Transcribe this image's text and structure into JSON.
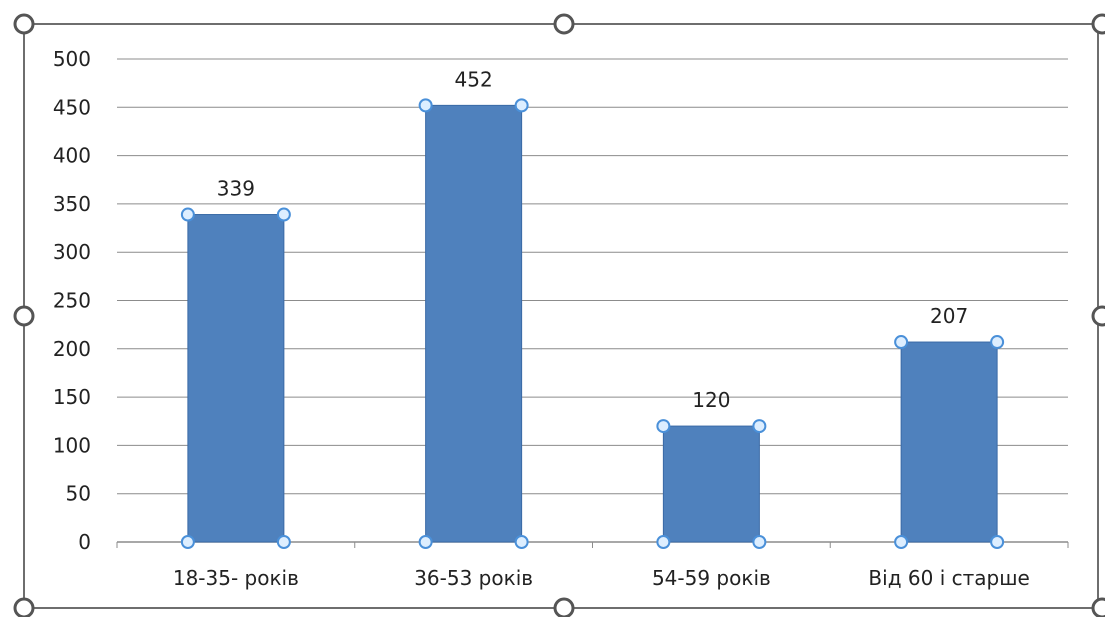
{
  "chart_data": {
    "type": "bar",
    "categories": [
      "18-35- років",
      "36-53 років",
      "54-59 років",
      "Від 60 і старше"
    ],
    "values": [
      339,
      452,
      120,
      207
    ],
    "value_labels": [
      "339",
      "452",
      "120",
      "207"
    ],
    "y_ticks": [
      "0",
      "50",
      "100",
      "150",
      "200",
      "250",
      "300",
      "350",
      "400",
      "450",
      "500"
    ],
    "ylim": [
      0,
      500
    ],
    "title": "",
    "xlabel": "",
    "ylabel": "",
    "grid": true,
    "legend": "none",
    "selected": true,
    "bar_color": "#4F81BD",
    "bar_border_color": "#3A6AA6",
    "gridline_color": "#8C8C8C",
    "frame_color": "#6E6E6E",
    "handle_stroke": "#555555",
    "point_handle_fill": "#DDEEFF",
    "point_handle_stroke": "#4A90D9"
  }
}
